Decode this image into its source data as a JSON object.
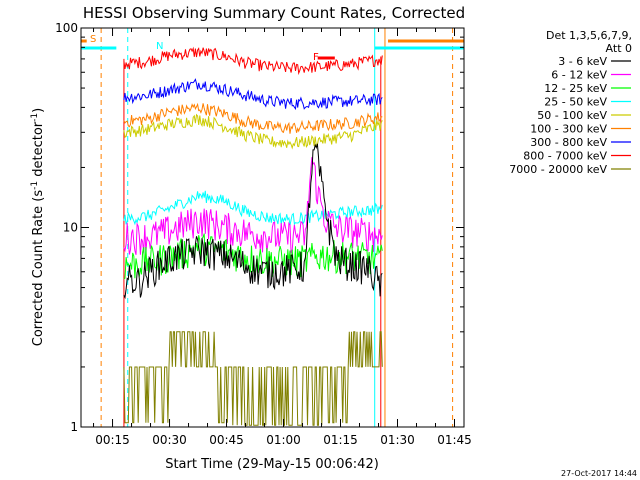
{
  "chart_data": {
    "type": "line",
    "title": "HESSI Observing Summary Count Rates, Corrected",
    "xlabel": "Start Time (29-May-15 00:06:42)",
    "ylabel": "Corrected Count Rate (s⁻¹ detector⁻¹)",
    "ylabel_main": "Corrected Count Rate (s",
    "ylabel_sup1": "-1",
    "ylabel_mid": " detector",
    "ylabel_sup2": "-1",
    "ylabel_end": ")",
    "xlim_minutes": [
      6.7,
      107.5
    ],
    "ylim": [
      1,
      100
    ],
    "yscale": "log",
    "x_ticks": [
      {
        "label": "00:15",
        "minute": 15
      },
      {
        "label": "00:30",
        "minute": 30
      },
      {
        "label": "00:45",
        "minute": 45
      },
      {
        "label": "01:00",
        "minute": 60
      },
      {
        "label": "01:15",
        "minute": 75
      },
      {
        "label": "01:30",
        "minute": 90
      },
      {
        "label": "01:45",
        "minute": 105
      }
    ],
    "y_ticks": [
      {
        "label": "1",
        "value": 1
      },
      {
        "label": "10",
        "value": 10
      },
      {
        "label": "100",
        "value": 100
      }
    ],
    "legend_header": [
      "Det 1,3,5,6,7,9,",
      "Att 0"
    ],
    "legend_position": "right",
    "series": [
      {
        "name": "3 - 6 keV",
        "color": "#000000",
        "points": [
          [
            18,
            5.5
          ],
          [
            22,
            5.4
          ],
          [
            25,
            6.1
          ],
          [
            30,
            7
          ],
          [
            38,
            7.8
          ],
          [
            45,
            7.2
          ],
          [
            50,
            6.5
          ],
          [
            55,
            6
          ],
          [
            62,
            6.2
          ],
          [
            66,
            6.5
          ],
          [
            67.5,
            20
          ],
          [
            68.5,
            25
          ],
          [
            70,
            16
          ],
          [
            72,
            10
          ],
          [
            74,
            7
          ],
          [
            78,
            6.5
          ],
          [
            82,
            6.3
          ],
          [
            86,
            5
          ]
        ]
      },
      {
        "name": "6 - 12 keV",
        "color": "#ff00ff",
        "points": [
          [
            18,
            9
          ],
          [
            25,
            9
          ],
          [
            32,
            10
          ],
          [
            38,
            11
          ],
          [
            45,
            10
          ],
          [
            52,
            9.3
          ],
          [
            60,
            9
          ],
          [
            66,
            9.2
          ],
          [
            67.5,
            22
          ],
          [
            69,
            15
          ],
          [
            71,
            11
          ],
          [
            74,
            10
          ],
          [
            80,
            9.5
          ],
          [
            86,
            9.1
          ]
        ]
      },
      {
        "name": "12 - 25 keV",
        "color": "#00ff00",
        "points": [
          [
            18,
            6.5
          ],
          [
            25,
            6.8
          ],
          [
            32,
            7.3
          ],
          [
            38,
            8
          ],
          [
            45,
            7.6
          ],
          [
            52,
            7
          ],
          [
            60,
            6.8
          ],
          [
            66,
            6.9
          ],
          [
            70,
            7.3
          ],
          [
            78,
            7.2
          ],
          [
            86,
            6.9
          ]
        ]
      },
      {
        "name": "25 - 50 keV",
        "color": "#00ffff",
        "points": [
          [
            18,
            11
          ],
          [
            24,
            11.4
          ],
          [
            30,
            12.5
          ],
          [
            38,
            14.5
          ],
          [
            45,
            13.5
          ],
          [
            50,
            12
          ],
          [
            56,
            11.2
          ],
          [
            62,
            11
          ],
          [
            70,
            11.5
          ],
          [
            78,
            12
          ],
          [
            86,
            12.4
          ]
        ]
      },
      {
        "name": "50 - 100 keV",
        "color": "#cccc00",
        "points": [
          [
            18,
            30
          ],
          [
            24,
            31
          ],
          [
            30,
            33
          ],
          [
            38,
            35
          ],
          [
            45,
            32
          ],
          [
            50,
            29
          ],
          [
            56,
            27
          ],
          [
            62,
            26.5
          ],
          [
            70,
            27.5
          ],
          [
            78,
            29
          ],
          [
            86,
            33
          ]
        ]
      },
      {
        "name": "100 - 300 keV",
        "color": "#ff8000",
        "points": [
          [
            18,
            34
          ],
          [
            24,
            35
          ],
          [
            30,
            38
          ],
          [
            38,
            40
          ],
          [
            45,
            37
          ],
          [
            50,
            34
          ],
          [
            56,
            32
          ],
          [
            62,
            31.5
          ],
          [
            70,
            32.5
          ],
          [
            78,
            33.5
          ],
          [
            86,
            36
          ]
        ]
      },
      {
        "name": "300 - 800 keV",
        "color": "#0000ff",
        "points": [
          [
            18,
            45
          ],
          [
            24,
            46
          ],
          [
            30,
            49
          ],
          [
            38,
            53
          ],
          [
            45,
            49
          ],
          [
            50,
            46
          ],
          [
            56,
            43
          ],
          [
            62,
            42
          ],
          [
            70,
            42.5
          ],
          [
            78,
            43
          ],
          [
            86,
            44
          ]
        ]
      },
      {
        "name": "800 - 7000 keV",
        "color": "#ff0000",
        "points": [
          [
            18,
            66
          ],
          [
            24,
            68
          ],
          [
            30,
            73
          ],
          [
            38,
            76
          ],
          [
            45,
            72
          ],
          [
            50,
            67
          ],
          [
            56,
            64
          ],
          [
            62,
            63
          ],
          [
            70,
            64
          ],
          [
            78,
            66
          ],
          [
            86,
            70
          ]
        ]
      },
      {
        "name": "7000 - 20000 keV",
        "color": "#808000",
        "points": [
          [
            18,
            2
          ],
          [
            22,
            2
          ],
          [
            27,
            2
          ],
          [
            32,
            2.8
          ],
          [
            36,
            3
          ],
          [
            41,
            2.8
          ],
          [
            44,
            2.2
          ],
          [
            48,
            1.5
          ],
          [
            54,
            1.6
          ],
          [
            60,
            1.5
          ],
          [
            64,
            1.6
          ],
          [
            70,
            1.7
          ],
          [
            75,
            2.3
          ],
          [
            80,
            2.8
          ],
          [
            86,
            2.9
          ]
        ]
      }
    ],
    "annotations": [
      {
        "text": "S",
        "color": "#ff8000"
      },
      {
        "text": "N",
        "color": "#00ffff"
      },
      {
        "text": "F",
        "color": "#ff0000"
      }
    ],
    "timestamp": "27-Oct-2017 14:44"
  }
}
